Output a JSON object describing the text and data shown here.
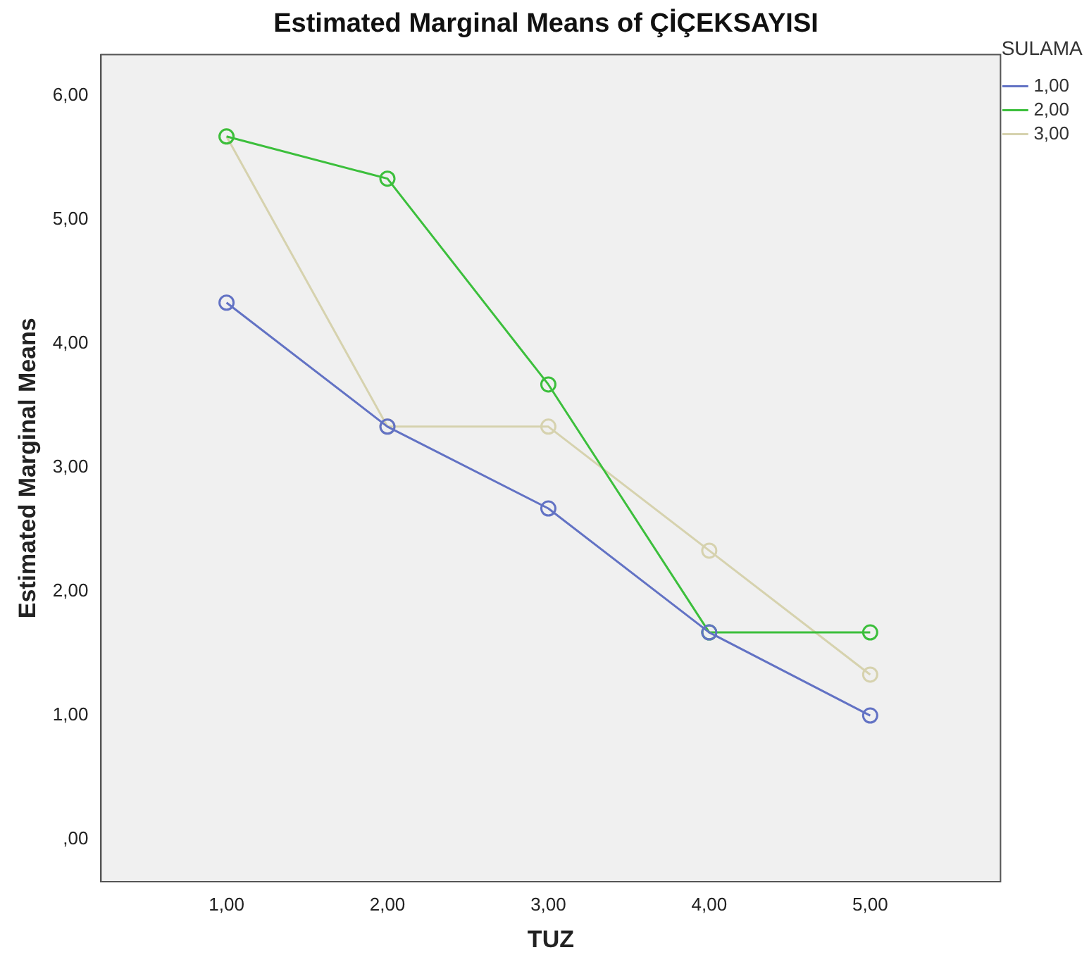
{
  "chart_data": {
    "type": "line",
    "title": "Estimated Marginal Means of ÇİÇEKSAYISI",
    "xlabel": "TUZ",
    "ylabel": "Estimated Marginal Means",
    "legend_title": "SULAMA",
    "x": [
      1,
      2,
      3,
      4,
      5
    ],
    "xlim": [
      0.22,
      5.81
    ],
    "xticks": [
      {
        "value": 1,
        "label": "1,00"
      },
      {
        "value": 2,
        "label": "2,00"
      },
      {
        "value": 3,
        "label": "3,00"
      },
      {
        "value": 4,
        "label": "4,00"
      },
      {
        "value": 5,
        "label": "5,00"
      }
    ],
    "ylim": [
      -0.34,
      6.33
    ],
    "yticks": [
      {
        "value": 0,
        "label": ",00"
      },
      {
        "value": 1,
        "label": "1,00"
      },
      {
        "value": 2,
        "label": "2,00"
      },
      {
        "value": 3,
        "label": "3,00"
      },
      {
        "value": 4,
        "label": "4,00"
      },
      {
        "value": 5,
        "label": "5,00"
      },
      {
        "value": 6,
        "label": "6,00"
      }
    ],
    "series": [
      {
        "name": "1,00",
        "color": "#6272c4",
        "values": [
          4.33,
          3.33,
          2.67,
          1.67,
          1.0
        ]
      },
      {
        "name": "2,00",
        "color": "#3cbf3c",
        "values": [
          5.67,
          5.33,
          3.67,
          1.67,
          1.67
        ]
      },
      {
        "name": "3,00",
        "color": "#d6d2ae",
        "values": [
          5.67,
          3.33,
          3.33,
          2.33,
          1.33
        ]
      }
    ],
    "marker": "circle",
    "line_style": "solid",
    "grid": false,
    "legend": "top right"
  }
}
